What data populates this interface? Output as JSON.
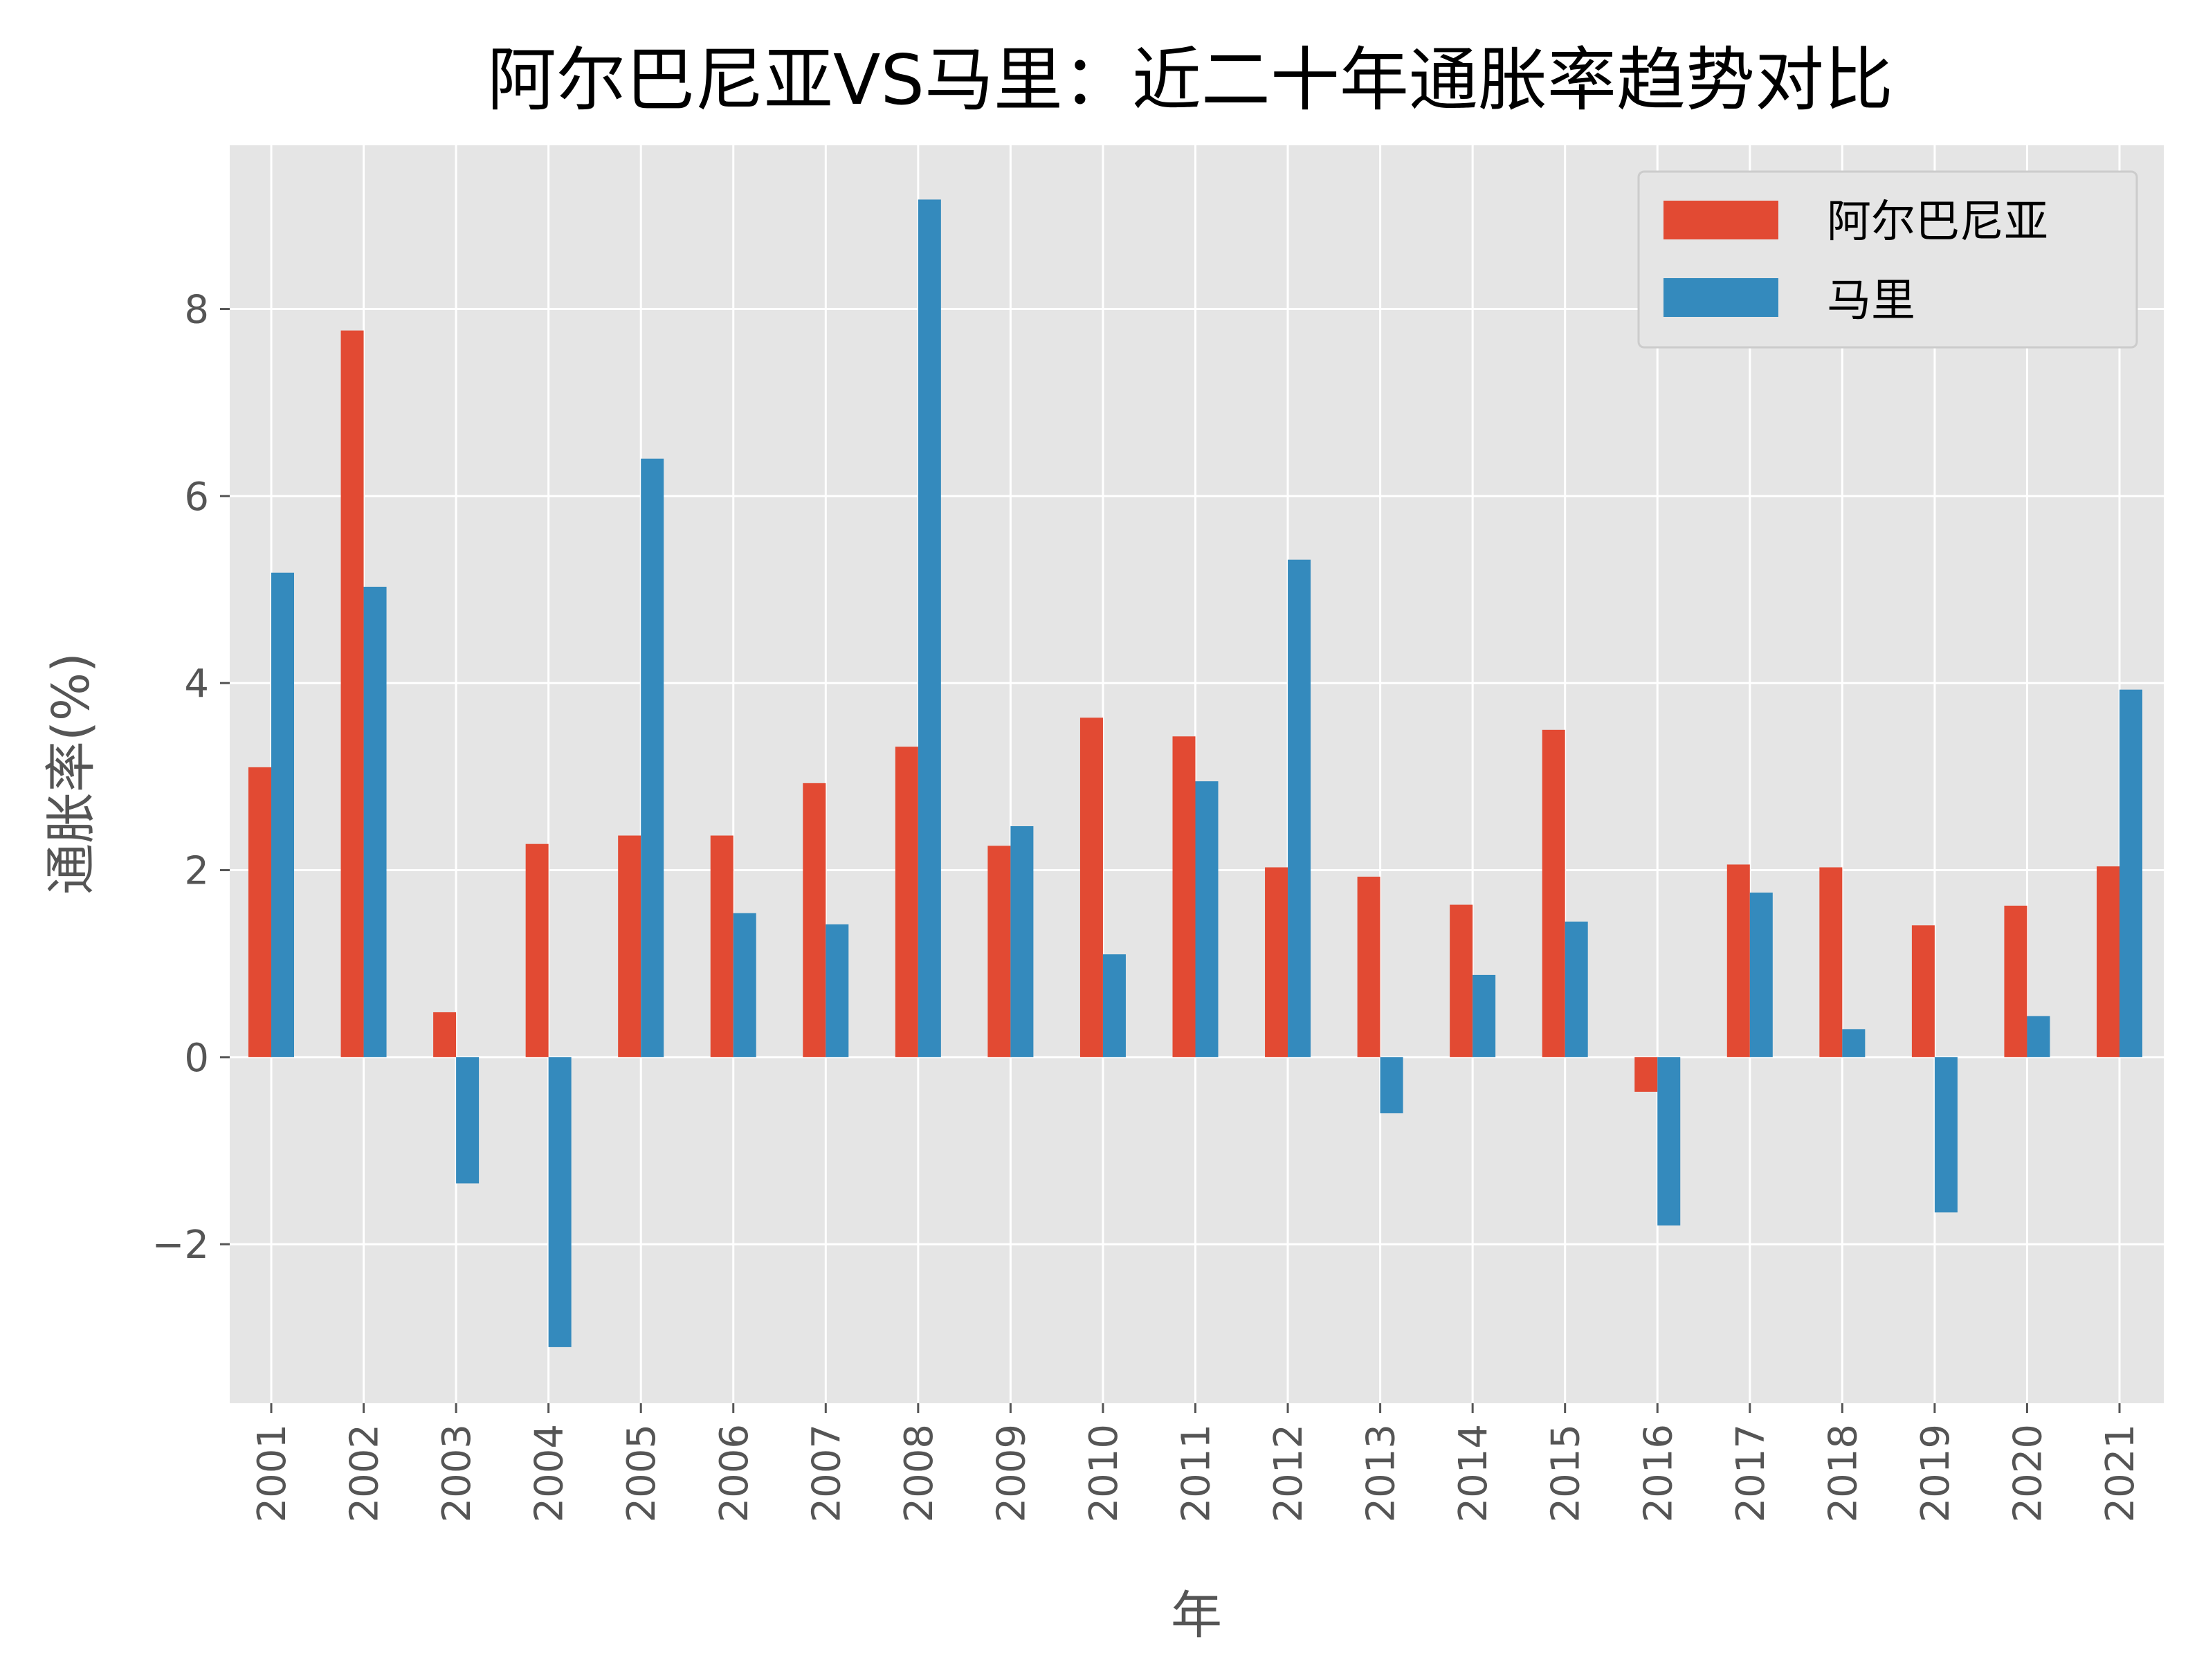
{
  "chart_data": {
    "type": "bar",
    "title": "阿尔巴尼亚VS马里：近二十年通胀率趋势对比",
    "xlabel": "年",
    "ylabel": "通胀率(%)",
    "categories": [
      "2001",
      "2002",
      "2003",
      "2004",
      "2005",
      "2006",
      "2007",
      "2008",
      "2009",
      "2010",
      "2011",
      "2012",
      "2013",
      "2014",
      "2015",
      "2016",
      "2017",
      "2018",
      "2019",
      "2020",
      "2021"
    ],
    "series": [
      {
        "name": "阿尔巴尼亚",
        "color": "#E24A33",
        "values": [
          3.1,
          7.77,
          0.48,
          2.28,
          2.37,
          2.37,
          2.93,
          3.32,
          2.26,
          3.63,
          3.43,
          2.03,
          1.93,
          1.63,
          3.5,
          -0.37,
          2.06,
          2.03,
          1.41,
          1.62,
          2.04
        ]
      },
      {
        "name": "马里",
        "color": "#348ABD",
        "values": [
          5.18,
          5.03,
          -1.35,
          -3.1,
          6.4,
          1.54,
          1.42,
          9.17,
          2.47,
          1.1,
          2.95,
          5.32,
          -0.6,
          0.88,
          1.45,
          -1.8,
          1.76,
          0.3,
          -1.66,
          0.44,
          3.93
        ]
      }
    ],
    "yticks": [
      -2,
      0,
      2,
      4,
      6,
      8
    ],
    "ylim": [
      -3.7,
      9.75
    ],
    "grid": true,
    "legend": "top-right",
    "background": "#E5E5E5"
  }
}
